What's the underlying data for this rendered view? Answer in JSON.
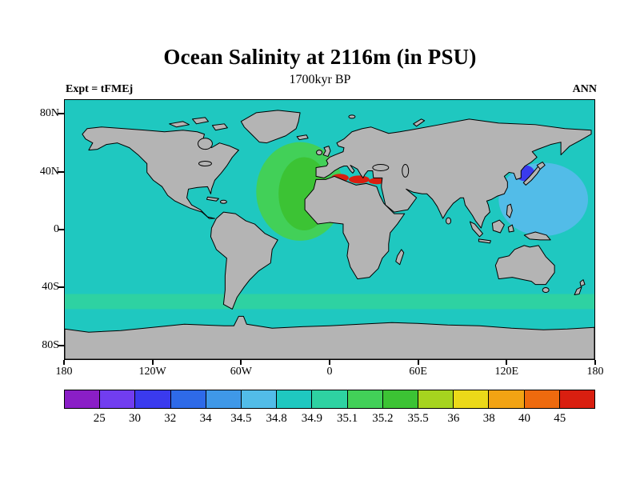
{
  "figure": {
    "title": "Ocean Salinity at 2116m (in PSU)",
    "subtitle": "1700kyr BP",
    "experiment_label": "Expt = tFMEj",
    "season_label": "ANN"
  },
  "chart_data": {
    "type": "heatmap",
    "title": "Ocean Salinity at 2116m (in PSU)",
    "subtitle": "1700kyr BP",
    "experiment": "tFMEj",
    "season": "ANN",
    "variable": "Ocean Salinity",
    "depth": "2116m",
    "units": "PSU",
    "time": "1700kyr BP",
    "projection": "equirectangular world map, 180W to 180E, 90S to 90N",
    "x_axis": {
      "ticks": [
        "180",
        "120W",
        "60W",
        "0",
        "60E",
        "120E",
        "180"
      ],
      "tick_degrees": [
        -180,
        -120,
        -60,
        0,
        60,
        120,
        180
      ]
    },
    "y_axis": {
      "ticks": [
        "80N",
        "40N",
        "0",
        "40S",
        "80S"
      ],
      "tick_degrees": [
        80,
        40,
        0,
        -40,
        -80
      ]
    },
    "colorbar": {
      "orientation": "horizontal",
      "levels": [
        "25",
        "30",
        "32",
        "34",
        "34.5",
        "34.8",
        "34.9",
        "35.1",
        "35.2",
        "35.5",
        "36",
        "38",
        "40",
        "45"
      ],
      "colors": [
        "#8a1ec6",
        "#713df0",
        "#3a3aee",
        "#2e6ae8",
        "#3f98e8",
        "#52bce8",
        "#1fc8c0",
        "#2ed2a2",
        "#42d058",
        "#3cc334",
        "#a6d41f",
        "#ecd919",
        "#f2a313",
        "#ee6a0e",
        "#d91f10"
      ]
    },
    "map_colors": {
      "land": "#b4b4b4",
      "coastline": "#000000",
      "base_ocean": "#1fc8c0",
      "southern_band": "#2ed2a2",
      "atlantic_outer": "#42d058",
      "atlantic_inner": "#3cc334",
      "nw_pacific_patch": "#52bce8",
      "japan_sea": "#3a3aee",
      "mediterranean": "#d91f10"
    },
    "notable_features": [
      {
        "region": "Global deep-ocean background",
        "salinity_psu": "34.8-34.9"
      },
      {
        "region": "North Atlantic",
        "salinity_psu": "35.2-35.5"
      },
      {
        "region": "Southern Ocean band ~45S-55S",
        "salinity_psu": "34.9-35.2"
      },
      {
        "region": "Northwest Pacific / Philippine Sea",
        "salinity_psu": "34.5-34.8"
      },
      {
        "region": "Sea of Japan",
        "salinity_psu": "30-32"
      },
      {
        "region": "Mediterranean Sea",
        "salinity_psu": ">45"
      }
    ]
  }
}
